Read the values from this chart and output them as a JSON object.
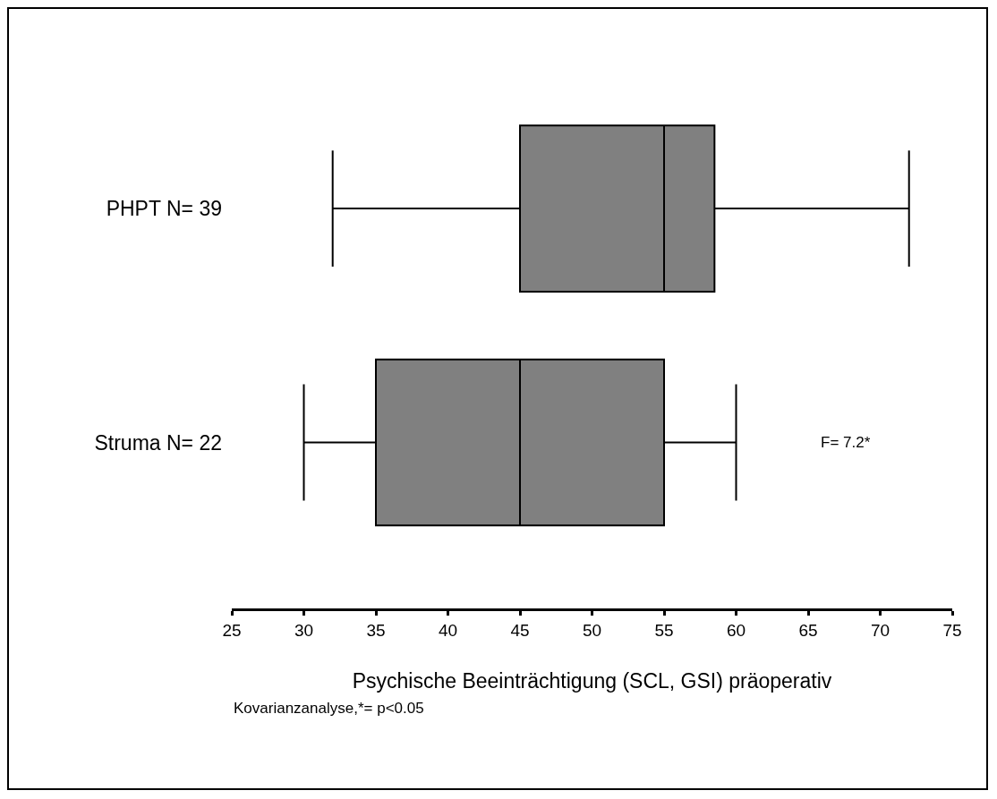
{
  "chart_data": {
    "type": "box",
    "orientation": "horizontal",
    "categories": [
      "PHPT N= 39",
      "Struma N= 22"
    ],
    "boxes": [
      {
        "low": 32,
        "q1": 45,
        "median": 55,
        "q3": 58.5,
        "high": 72
      },
      {
        "low": 30,
        "q1": 35,
        "median": 45,
        "q3": 55,
        "high": 60
      }
    ],
    "color": "#808080",
    "xlim": [
      25,
      75
    ],
    "xticks": [
      25,
      30,
      35,
      40,
      45,
      50,
      55,
      60,
      65,
      70,
      75
    ],
    "xlabel": "Psychische Beeinträchtigung (SCL, GSI) präoperativ",
    "annotations": [
      "F= 7.2*",
      "Kovarianzanalyse,*= p<0.05"
    ],
    "grid": false,
    "legend": false
  }
}
